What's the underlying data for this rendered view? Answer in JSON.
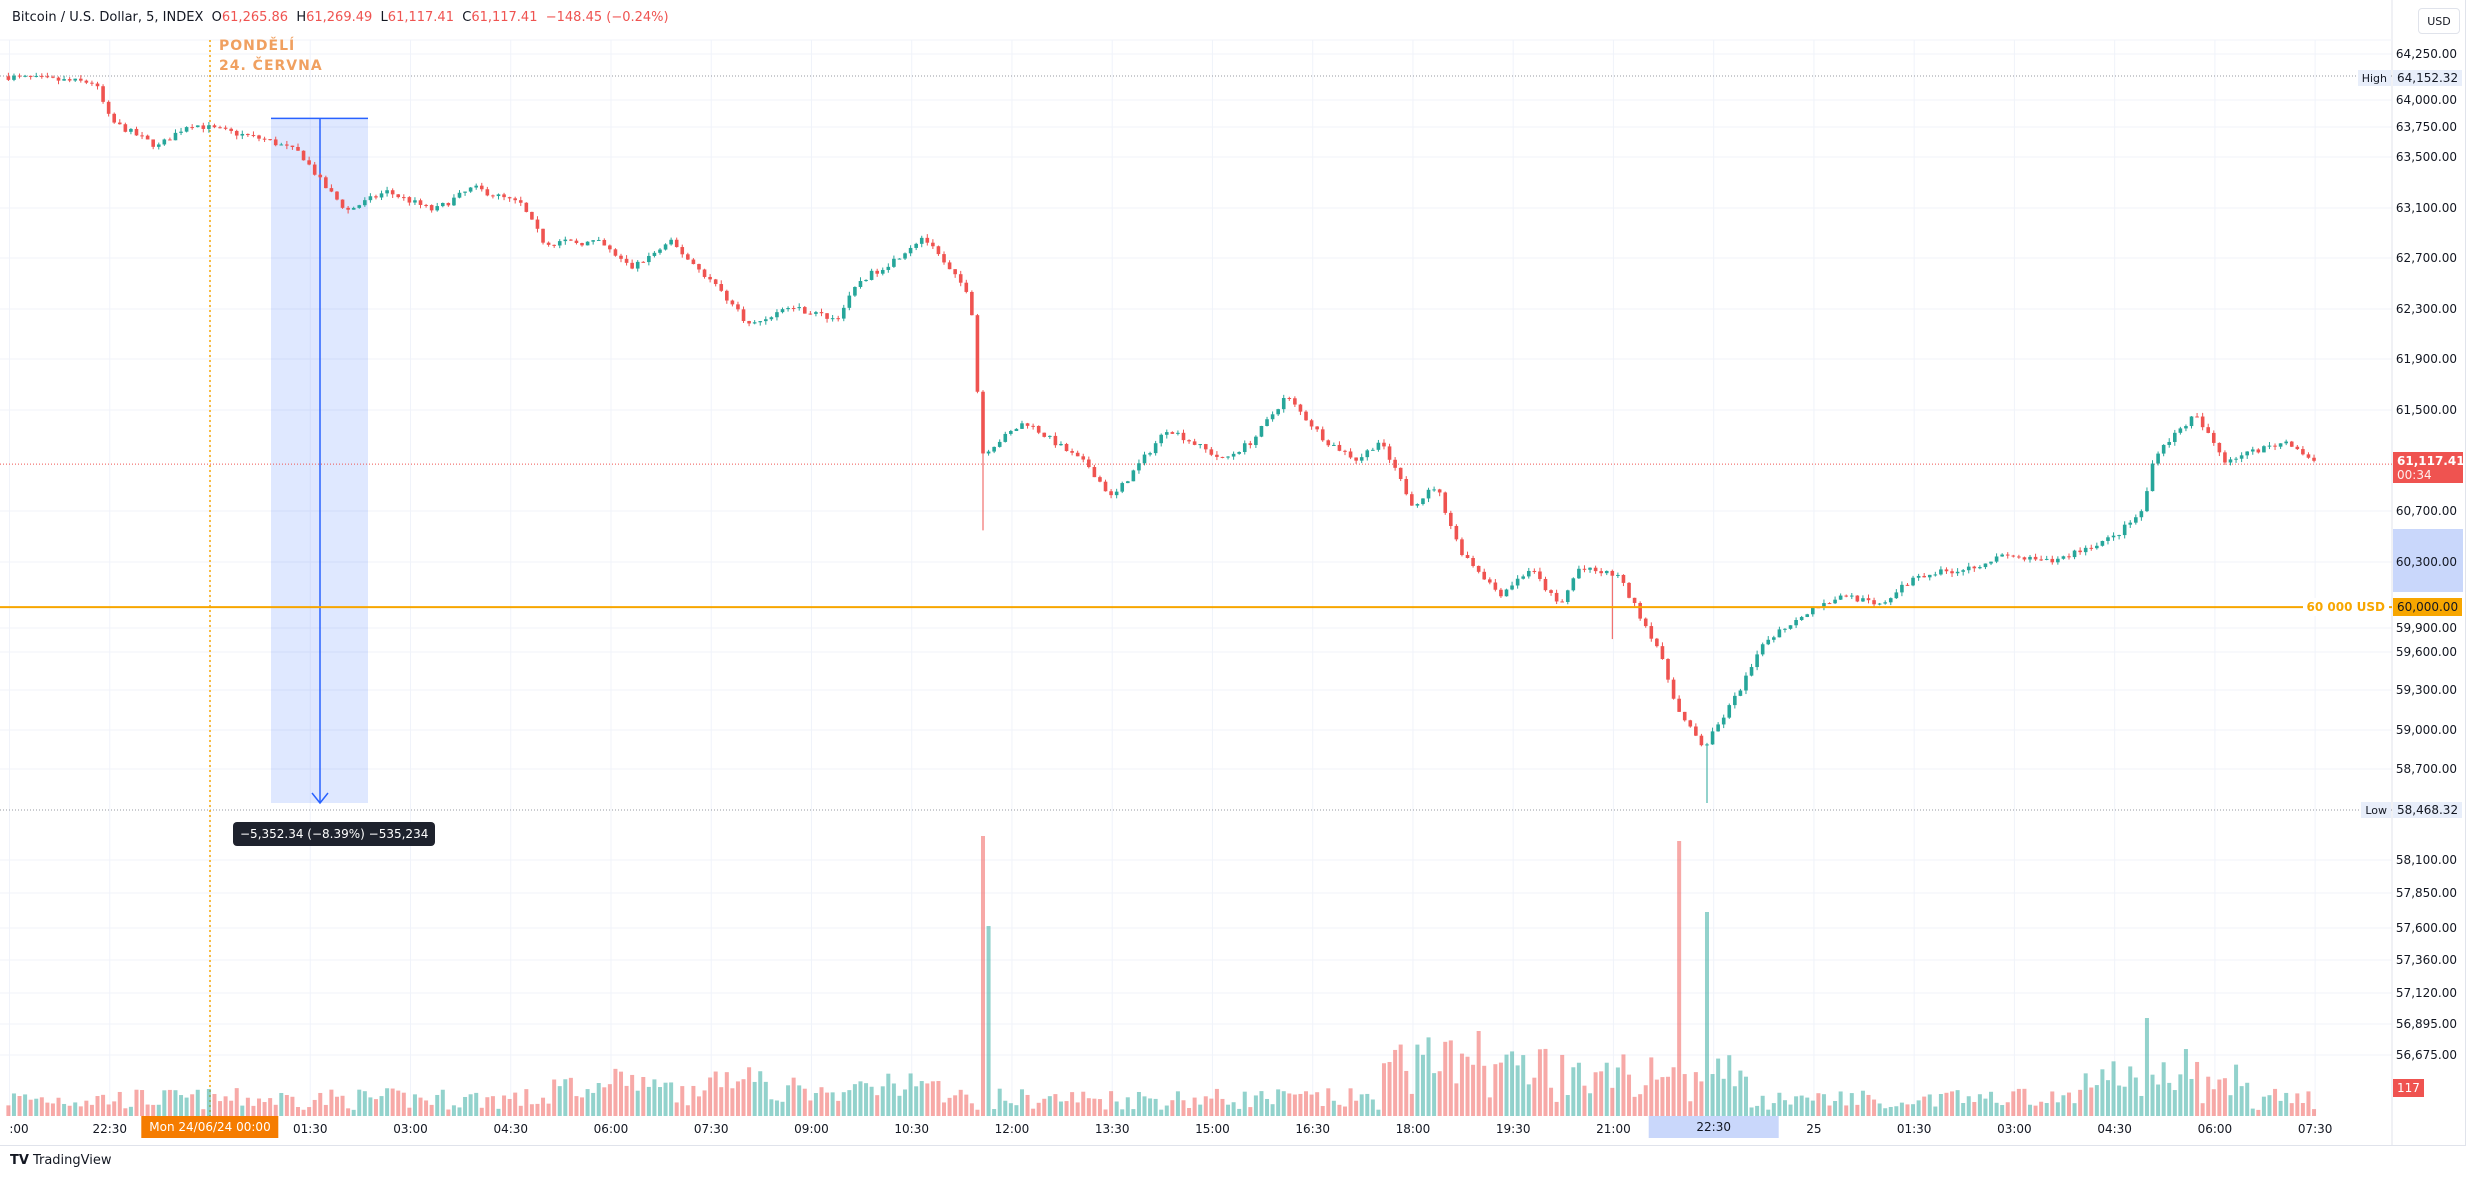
{
  "header": {
    "symbol": "Bitcoin / U.S. Dollar, 5, INDEX",
    "open_label": "O",
    "open": "61,265.86",
    "high_label": "H",
    "high": "61,269.49",
    "low_label": "L",
    "low": "61,117.41",
    "close_label": "C",
    "close": "61,117.41",
    "change": "−148.45 (−0.24%)",
    "currency_button": "USD"
  },
  "annotations": {
    "day_line1": "PONDĚLÍ",
    "day_line2": "24. ČERVNA",
    "measure_label": "−5,352.34 (−8.39%) −535,234",
    "level_label": "60 000 USD",
    "level_price": "60,000.00",
    "high_tag": "High",
    "high_value": "64,152.32",
    "low_tag": "Low",
    "low_value": "58,468.32",
    "last_price": "61,117.41",
    "countdown": "00:34",
    "volume_last": "117"
  },
  "colors": {
    "up": "#26a69a",
    "down": "#ef5350",
    "level": "#f7a600",
    "measure": "#2962ff",
    "day_line": "#f7a600"
  },
  "price_axis": [
    "64,250.00",
    "64,000.00",
    "63,750.00",
    "63,500.00",
    "63,100.00",
    "62,700.00",
    "62,300.00",
    "61,900.00",
    "61,500.00",
    "60,700.00",
    "60,300.00",
    "59,900.00",
    "59,600.00",
    "59,300.00",
    "59,000.00",
    "58,700.00",
    "58,100.00",
    "57,850.00",
    "57,600.00",
    "57,360.00",
    "57,120.00",
    "56,895.00",
    "56,675.00"
  ],
  "time_axis": [
    ":00",
    "22:30",
    "Mon 24/06/24  00:00",
    "01:30",
    "03:00",
    "04:30",
    "06:00",
    "07:30",
    "09:00",
    "10:30",
    "12:00",
    "13:30",
    "15:00",
    "16:30",
    "18:00",
    "19:30",
    "21:00",
    "22:30",
    "25",
    "01:30",
    "03:00",
    "04:30",
    "06:00",
    "07:30"
  ],
  "footer": {
    "brand": "TradingView"
  },
  "chart_data": {
    "type": "candlestick",
    "title": "Bitcoin / U.S. Dollar, 5, INDEX",
    "interval_minutes": 5,
    "x_unit": "hours from Mon 24/06/24 00:00",
    "ylim": [
      58468.32,
      64152.32
    ],
    "levels": [
      {
        "price": 60000,
        "label": "60 000 USD"
      }
    ],
    "measure": {
      "from_price": 63820.66,
      "to_price": 58468.32,
      "change": -5352.34,
      "change_pct": -8.39
    },
    "close_path": [
      [
        -3.1,
        64150
      ],
      [
        -1.72,
        64100
      ],
      [
        -1.49,
        63800
      ],
      [
        -0.78,
        63600
      ],
      [
        -0.31,
        63780
      ],
      [
        0.87,
        63650
      ],
      [
        1.35,
        63550
      ],
      [
        1.7,
        63300
      ],
      [
        2.05,
        63100
      ],
      [
        2.64,
        63250
      ],
      [
        3.35,
        63100
      ],
      [
        3.94,
        63280
      ],
      [
        4.65,
        63150
      ],
      [
        5.0,
        62850
      ],
      [
        5.83,
        62850
      ],
      [
        6.3,
        62650
      ],
      [
        6.9,
        62850
      ],
      [
        7.6,
        62500
      ],
      [
        8.08,
        62200
      ],
      [
        8.67,
        62350
      ],
      [
        9.37,
        62250
      ],
      [
        9.73,
        62550
      ],
      [
        10.2,
        62700
      ],
      [
        10.67,
        62900
      ],
      [
        11.03,
        62650
      ],
      [
        11.38,
        62450
      ],
      [
        11.55,
        61200
      ],
      [
        12.2,
        61450
      ],
      [
        13.15,
        61100
      ],
      [
        13.5,
        60850
      ],
      [
        14.33,
        61400
      ],
      [
        15.16,
        61150
      ],
      [
        15.6,
        61300
      ],
      [
        16.1,
        61650
      ],
      [
        16.7,
        61300
      ],
      [
        17.17,
        61150
      ],
      [
        17.5,
        61300
      ],
      [
        18.0,
        60800
      ],
      [
        18.35,
        60950
      ],
      [
        18.7,
        60450
      ],
      [
        19.3,
        60100
      ],
      [
        19.76,
        60300
      ],
      [
        20.2,
        60000
      ],
      [
        20.47,
        60300
      ],
      [
        21.06,
        60250
      ],
      [
        21.65,
        59700
      ],
      [
        22.0,
        59150
      ],
      [
        22.36,
        58900
      ],
      [
        22.83,
        59300
      ],
      [
        23.3,
        59750
      ],
      [
        24.0,
        60000
      ],
      [
        24.5,
        60100
      ],
      [
        24.96,
        60000
      ],
      [
        25.55,
        60250
      ],
      [
        26.26,
        60300
      ],
      [
        26.85,
        60400
      ],
      [
        27.56,
        60350
      ],
      [
        28.0,
        60450
      ],
      [
        28.5,
        60550
      ],
      [
        28.92,
        60750
      ],
      [
        29.1,
        61200
      ],
      [
        29.7,
        61500
      ],
      [
        30.15,
        61150
      ],
      [
        31.1,
        61300
      ],
      [
        31.52,
        61117.41
      ]
    ]
  }
}
